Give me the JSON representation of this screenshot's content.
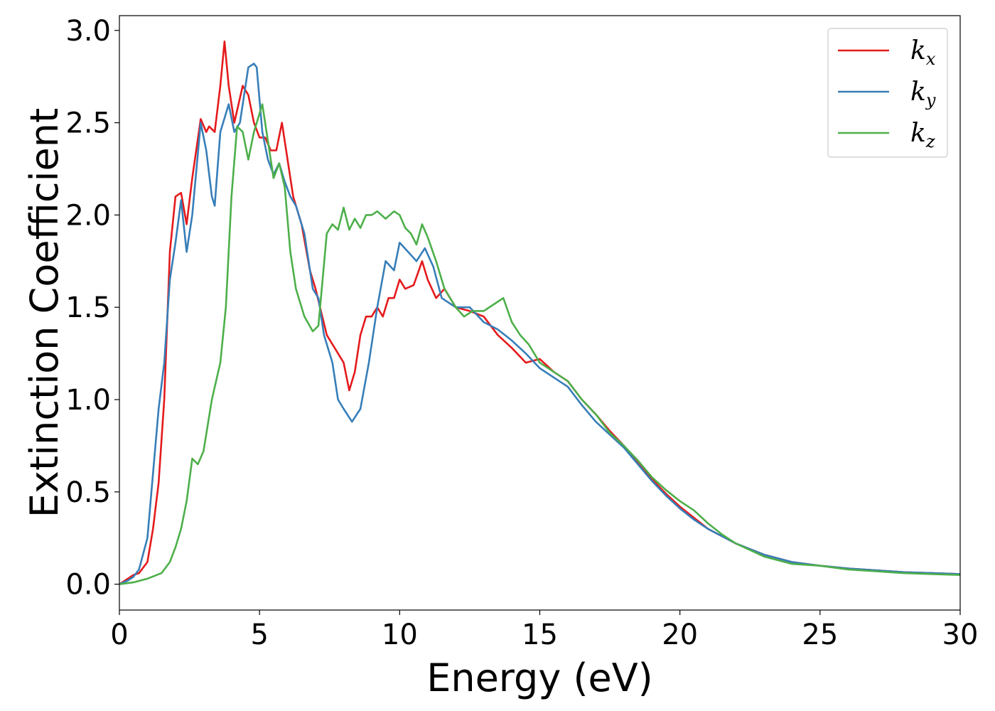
{
  "chart_data": {
    "type": "line",
    "xlabel": "Energy (eV)",
    "ylabel": "Extinction Coefficient",
    "xlim": [
      0,
      30
    ],
    "ylim": [
      -0.14,
      3.08
    ],
    "xticks": [
      "0",
      "5",
      "10",
      "15",
      "20",
      "25",
      "30"
    ],
    "yticks": [
      "0.0",
      "0.5",
      "1.0",
      "1.5",
      "2.0",
      "2.5",
      "3.0"
    ],
    "grid": false,
    "legend_position": "top-right",
    "series": [
      {
        "name": "k",
        "subscript": "x",
        "color": "#e41a1c",
        "x": [
          0,
          0.3,
          0.5,
          0.7,
          1.0,
          1.2,
          1.4,
          1.6,
          1.8,
          2.0,
          2.2,
          2.4,
          2.6,
          2.9,
          3.1,
          3.2,
          3.4,
          3.6,
          3.75,
          3.9,
          4.1,
          4.4,
          4.6,
          4.8,
          5.0,
          5.2,
          5.4,
          5.6,
          5.8,
          6.0,
          6.2,
          6.5,
          6.8,
          7.0,
          7.4,
          7.8,
          8.0,
          8.2,
          8.4,
          8.6,
          8.8,
          9.0,
          9.2,
          9.4,
          9.6,
          9.8,
          10.0,
          10.2,
          10.5,
          10.8,
          11.0,
          11.3,
          11.6,
          12.0,
          12.5,
          13.0,
          13.5,
          14.0,
          14.5,
          15.0,
          15.5,
          16.0,
          16.5,
          17.0,
          17.5,
          18.0,
          18.5,
          19.0,
          19.5,
          20.0,
          20.5,
          21.0,
          21.5,
          22.0,
          23.0,
          24.0,
          25.0,
          26.0,
          27.0,
          28.0,
          29.0,
          30.0
        ],
        "y": [
          0.0,
          0.03,
          0.05,
          0.06,
          0.12,
          0.3,
          0.55,
          1.0,
          1.8,
          2.1,
          2.12,
          1.95,
          2.2,
          2.52,
          2.45,
          2.48,
          2.45,
          2.7,
          2.94,
          2.7,
          2.5,
          2.7,
          2.65,
          2.5,
          2.42,
          2.42,
          2.35,
          2.35,
          2.5,
          2.3,
          2.1,
          1.95,
          1.7,
          1.6,
          1.35,
          1.25,
          1.2,
          1.05,
          1.15,
          1.35,
          1.45,
          1.45,
          1.5,
          1.45,
          1.55,
          1.55,
          1.65,
          1.6,
          1.62,
          1.75,
          1.65,
          1.55,
          1.6,
          1.5,
          1.48,
          1.45,
          1.35,
          1.28,
          1.2,
          1.22,
          1.15,
          1.1,
          1.0,
          0.92,
          0.83,
          0.75,
          0.66,
          0.57,
          0.49,
          0.42,
          0.36,
          0.3,
          0.26,
          0.22,
          0.16,
          0.12,
          0.1,
          0.085,
          0.075,
          0.065,
          0.06,
          0.055
        ]
      },
      {
        "name": "k",
        "subscript": "y",
        "color": "#377eb8",
        "x": [
          0,
          0.3,
          0.5,
          0.7,
          1.0,
          1.2,
          1.4,
          1.6,
          1.8,
          2.0,
          2.2,
          2.4,
          2.6,
          2.9,
          3.1,
          3.3,
          3.4,
          3.6,
          3.9,
          4.1,
          4.3,
          4.6,
          4.8,
          4.9,
          5.1,
          5.3,
          5.5,
          5.7,
          5.9,
          6.1,
          6.3,
          6.6,
          6.9,
          7.1,
          7.3,
          7.6,
          7.8,
          8.0,
          8.3,
          8.6,
          8.9,
          9.2,
          9.5,
          9.8,
          10.0,
          10.3,
          10.6,
          10.9,
          11.2,
          11.5,
          12.0,
          12.5,
          13.0,
          13.5,
          14.0,
          14.5,
          15.0,
          15.5,
          16.0,
          16.5,
          17.0,
          17.5,
          18.0,
          18.5,
          19.0,
          19.5,
          20.0,
          20.5,
          21.0,
          21.5,
          22.0,
          23.0,
          24.0,
          25.0,
          26.0,
          27.0,
          28.0,
          29.0,
          30.0
        ],
        "y": [
          0.0,
          0.02,
          0.04,
          0.08,
          0.25,
          0.6,
          0.95,
          1.2,
          1.65,
          1.85,
          2.08,
          1.8,
          2.0,
          2.5,
          2.35,
          2.1,
          2.05,
          2.45,
          2.6,
          2.45,
          2.5,
          2.8,
          2.82,
          2.8,
          2.45,
          2.3,
          2.22,
          2.28,
          2.18,
          2.1,
          2.05,
          1.9,
          1.6,
          1.55,
          1.35,
          1.2,
          1.0,
          0.95,
          0.88,
          0.95,
          1.2,
          1.5,
          1.75,
          1.7,
          1.85,
          1.8,
          1.75,
          1.82,
          1.72,
          1.55,
          1.5,
          1.5,
          1.42,
          1.38,
          1.32,
          1.25,
          1.17,
          1.12,
          1.07,
          0.97,
          0.88,
          0.81,
          0.74,
          0.65,
          0.56,
          0.48,
          0.41,
          0.35,
          0.3,
          0.26,
          0.22,
          0.16,
          0.12,
          0.1,
          0.085,
          0.075,
          0.065,
          0.06,
          0.055
        ]
      },
      {
        "name": "k",
        "subscript": "z",
        "color": "#4daf4a",
        "x": [
          0,
          0.5,
          1.0,
          1.5,
          1.8,
          2.0,
          2.2,
          2.4,
          2.6,
          2.8,
          3.0,
          3.3,
          3.6,
          3.8,
          4.0,
          4.2,
          4.4,
          4.6,
          4.8,
          5.0,
          5.1,
          5.3,
          5.5,
          5.7,
          5.9,
          6.1,
          6.3,
          6.6,
          6.9,
          7.1,
          7.4,
          7.6,
          7.8,
          8.0,
          8.2,
          8.4,
          8.6,
          8.8,
          9.0,
          9.2,
          9.5,
          9.8,
          10.0,
          10.2,
          10.4,
          10.6,
          10.8,
          11.0,
          11.3,
          11.6,
          12.0,
          12.3,
          12.6,
          13.0,
          13.4,
          13.7,
          14.0,
          14.3,
          14.6,
          15.0,
          15.5,
          16.0,
          16.5,
          17.0,
          17.5,
          18.0,
          18.5,
          19.0,
          19.5,
          20.0,
          20.5,
          21.0,
          21.5,
          22.0,
          23.0,
          24.0,
          25.0,
          26.0,
          27.0,
          28.0,
          29.0,
          30.0
        ],
        "y": [
          0.0,
          0.01,
          0.03,
          0.06,
          0.12,
          0.2,
          0.3,
          0.45,
          0.68,
          0.65,
          0.72,
          1.0,
          1.2,
          1.5,
          2.1,
          2.48,
          2.45,
          2.3,
          2.45,
          2.55,
          2.6,
          2.4,
          2.2,
          2.28,
          2.15,
          1.8,
          1.6,
          1.45,
          1.37,
          1.4,
          1.9,
          1.95,
          1.92,
          2.04,
          1.92,
          1.98,
          1.93,
          2.0,
          2.0,
          2.02,
          1.98,
          2.02,
          2.0,
          1.93,
          1.9,
          1.84,
          1.95,
          1.88,
          1.75,
          1.6,
          1.5,
          1.45,
          1.48,
          1.48,
          1.52,
          1.55,
          1.42,
          1.35,
          1.3,
          1.2,
          1.15,
          1.1,
          1.0,
          0.92,
          0.82,
          0.75,
          0.67,
          0.58,
          0.51,
          0.45,
          0.4,
          0.33,
          0.27,
          0.22,
          0.15,
          0.11,
          0.1,
          0.08,
          0.07,
          0.06,
          0.055,
          0.05
        ]
      }
    ]
  }
}
